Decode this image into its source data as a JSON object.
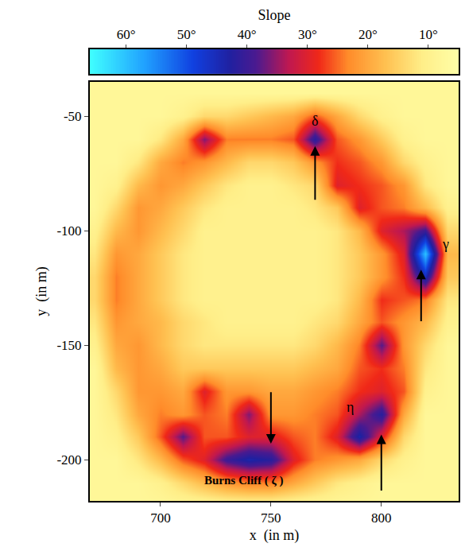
{
  "chart_data": {
    "type": "heatmap",
    "xlabel": "x  (in m)",
    "ylabel": "y  (in m)",
    "xlim": [
      668,
      835
    ],
    "ylim": [
      -218,
      -35
    ],
    "xticks": [
      700,
      750,
      800
    ],
    "yticks": [
      -200,
      -150,
      -100,
      -50
    ],
    "x": [
      670,
      680,
      690,
      700,
      710,
      720,
      730,
      740,
      750,
      760,
      770,
      780,
      790,
      800,
      810,
      820,
      830
    ],
    "y": [
      -40,
      -50,
      -60,
      -70,
      -80,
      -90,
      -100,
      -110,
      -120,
      -130,
      -140,
      -150,
      -160,
      -170,
      -180,
      -190,
      -200,
      -210,
      -220
    ],
    "cells": [
      [
        8,
        8,
        8,
        8,
        8,
        8,
        8,
        8,
        8,
        8,
        8,
        8,
        8,
        8,
        8,
        8,
        8
      ],
      [
        8,
        8,
        8,
        8,
        10,
        14,
        14,
        16,
        18,
        20,
        26,
        20,
        14,
        10,
        8,
        8,
        8
      ],
      [
        8,
        8,
        8,
        12,
        20,
        36,
        24,
        24,
        24,
        26,
        42,
        26,
        22,
        16,
        10,
        8,
        8
      ],
      [
        8,
        8,
        12,
        20,
        24,
        22,
        18,
        14,
        14,
        16,
        22,
        28,
        26,
        22,
        14,
        10,
        8
      ],
      [
        8,
        10,
        18,
        22,
        20,
        16,
        12,
        10,
        10,
        12,
        14,
        30,
        28,
        26,
        22,
        12,
        8
      ],
      [
        8,
        14,
        22,
        20,
        16,
        12,
        10,
        10,
        10,
        10,
        12,
        16,
        30,
        26,
        24,
        18,
        10
      ],
      [
        10,
        18,
        22,
        18,
        14,
        10,
        10,
        10,
        10,
        10,
        10,
        12,
        18,
        30,
        34,
        40,
        14
      ],
      [
        12,
        22,
        20,
        16,
        12,
        10,
        10,
        10,
        10,
        10,
        10,
        12,
        16,
        22,
        30,
        60,
        18
      ],
      [
        14,
        24,
        20,
        16,
        12,
        10,
        10,
        10,
        10,
        10,
        10,
        12,
        16,
        22,
        28,
        45,
        16
      ],
      [
        14,
        24,
        20,
        16,
        12,
        10,
        10,
        10,
        10,
        10,
        10,
        12,
        18,
        28,
        26,
        24,
        12
      ],
      [
        12,
        22,
        20,
        18,
        14,
        12,
        10,
        10,
        10,
        10,
        12,
        14,
        20,
        26,
        22,
        18,
        10
      ],
      [
        10,
        20,
        22,
        18,
        14,
        12,
        12,
        12,
        12,
        12,
        14,
        18,
        24,
        38,
        22,
        14,
        8
      ],
      [
        8,
        18,
        22,
        20,
        16,
        16,
        16,
        16,
        16,
        16,
        18,
        20,
        26,
        28,
        24,
        12,
        8
      ],
      [
        8,
        14,
        22,
        22,
        20,
        30,
        22,
        22,
        20,
        20,
        22,
        24,
        28,
        30,
        26,
        10,
        8
      ],
      [
        8,
        12,
        20,
        24,
        22,
        26,
        24,
        36,
        22,
        22,
        24,
        26,
        34,
        42,
        20,
        8,
        8
      ],
      [
        8,
        10,
        16,
        26,
        38,
        26,
        26,
        30,
        30,
        26,
        24,
        30,
        44,
        30,
        14,
        8,
        8
      ],
      [
        8,
        8,
        12,
        18,
        26,
        30,
        40,
        44,
        42,
        30,
        24,
        22,
        20,
        14,
        10,
        8,
        8
      ],
      [
        8,
        8,
        8,
        10,
        14,
        18,
        22,
        24,
        24,
        20,
        16,
        12,
        10,
        8,
        8,
        8,
        8
      ],
      [
        8,
        8,
        8,
        8,
        8,
        8,
        8,
        8,
        8,
        8,
        8,
        8,
        8,
        8,
        8,
        8,
        8
      ]
    ],
    "colorbar_title": "Slope",
    "colorbar_range": [
      5,
      66
    ],
    "colorbar_ticks": [
      {
        "value": 60,
        "label": "60°"
      },
      {
        "value": 50,
        "label": "50°"
      },
      {
        "value": 40,
        "label": "40°"
      },
      {
        "value": 30,
        "label": "30°"
      },
      {
        "value": 20,
        "label": "20°"
      },
      {
        "value": 10,
        "label": "10°"
      }
    ],
    "annotations": [
      {
        "text": "δ",
        "x": 770,
        "y": -52
      },
      {
        "text": "γ",
        "x": 829,
        "y": -106
      },
      {
        "text": "η",
        "x": 786,
        "y": -177
      },
      {
        "text": "Burns Cliff ( ζ )",
        "x": 738,
        "y": -209
      }
    ],
    "arrows": [
      {
        "from_x": 770,
        "from_y": -87,
        "x": 770,
        "y": -63
      },
      {
        "from_x": 818,
        "from_y": -140,
        "x": 818,
        "y": -117
      },
      {
        "from_x": 800,
        "from_y": -214,
        "x": 800,
        "y": -189
      },
      {
        "from_x": 750,
        "from_y": -170,
        "x": 750,
        "y": -193
      }
    ]
  }
}
